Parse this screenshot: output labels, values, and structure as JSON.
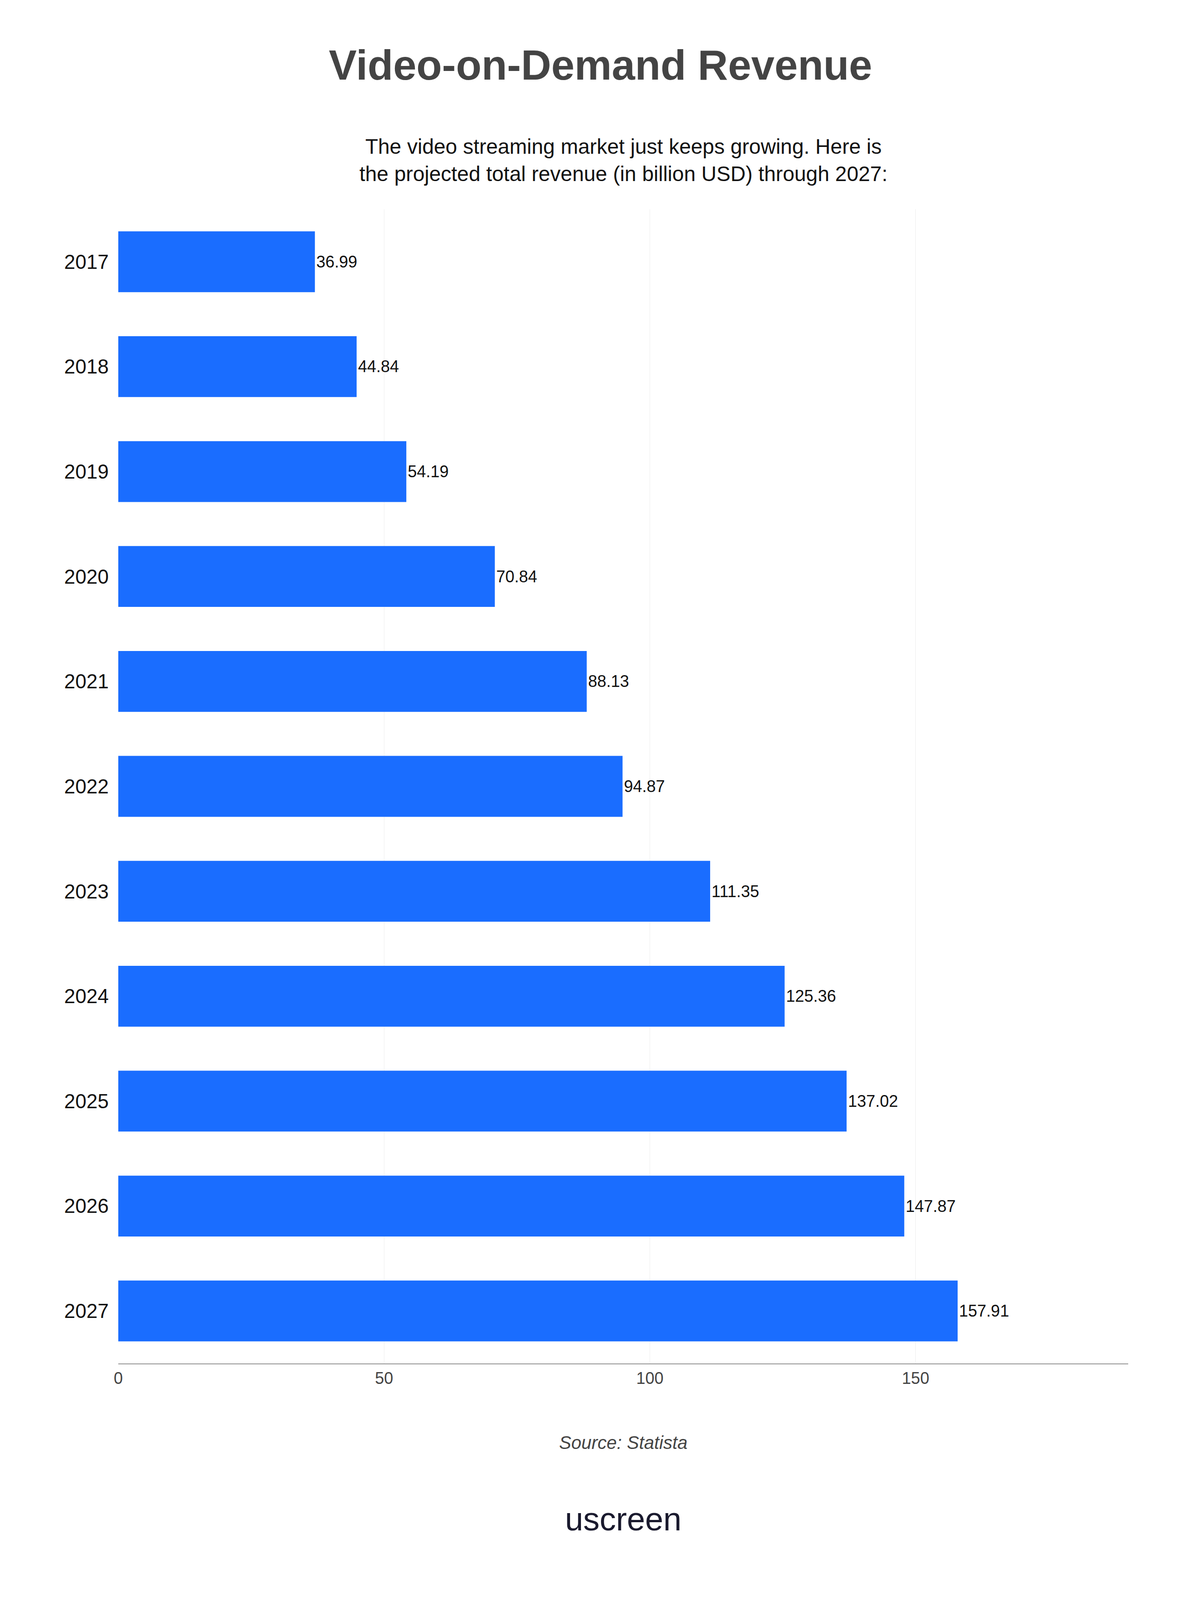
{
  "chart_data": {
    "type": "bar",
    "orientation": "horizontal",
    "title": "Video-on-Demand Revenue",
    "subtitle": "The video streaming market just keeps growing. Here is\nthe projected total revenue (in billion USD) through 2027:",
    "categories": [
      "2017",
      "2018",
      "2019",
      "2020",
      "2021",
      "2022",
      "2023",
      "2024",
      "2025",
      "2026",
      "2027"
    ],
    "values": [
      36.99,
      44.84,
      54.19,
      70.84,
      88.13,
      94.87,
      111.35,
      125.36,
      137.02,
      147.87,
      157.91
    ],
    "color": "#1a6dff",
    "xlim": [
      0,
      190
    ],
    "xticks": [
      0,
      50,
      100,
      150
    ],
    "grid": true,
    "data_labels": true,
    "annotations": [
      "Source: Statista",
      "uscreen"
    ]
  }
}
